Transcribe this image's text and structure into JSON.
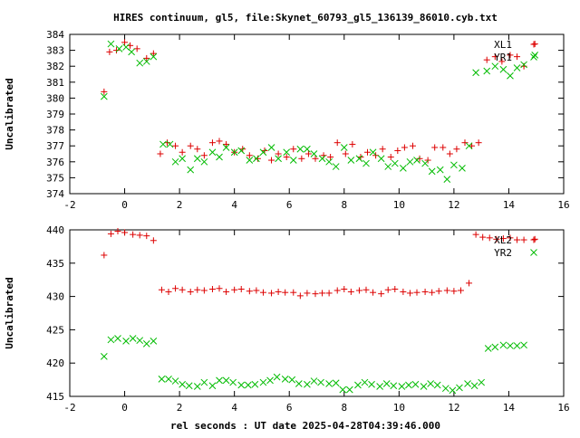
{
  "title": "HIRES continuum, gl5, file:Skynet_60793_gl5_136139_86010.cyb.txt",
  "xlabel": "rel seconds : UT date 2025-04-28T04:39:46.000",
  "colors": {
    "red": "#dd0000",
    "green": "#00bb00",
    "axes": "#000000"
  },
  "chart_data": [
    {
      "type": "scatter",
      "ylabel": "Uncalibrated",
      "xlim": [
        -2,
        16
      ],
      "ylim": [
        374,
        384
      ],
      "xticks": [
        -2,
        0,
        2,
        4,
        6,
        8,
        10,
        12,
        14,
        16
      ],
      "yticks": [
        374,
        375,
        376,
        377,
        378,
        379,
        380,
        381,
        382,
        383,
        384
      ],
      "legend_position": "top-right",
      "series": [
        {
          "name": "XL1",
          "marker": "plus",
          "color": "#dd0000",
          "x": [
            -0.75,
            -0.55,
            -0.3,
            0.0,
            0.2,
            0.45,
            0.8,
            1.05,
            1.3,
            1.55,
            1.85,
            2.1,
            2.4,
            2.65,
            2.9,
            3.2,
            3.45,
            3.7,
            4.0,
            4.3,
            4.55,
            4.85,
            5.1,
            5.35,
            5.6,
            5.9,
            6.15,
            6.45,
            6.7,
            6.95,
            7.25,
            7.5,
            7.75,
            8.05,
            8.3,
            8.6,
            8.85,
            9.15,
            9.4,
            9.7,
            9.95,
            10.2,
            10.5,
            10.75,
            11.05,
            11.3,
            11.6,
            11.85,
            12.1,
            12.4,
            12.65,
            12.9,
            13.2,
            13.5,
            13.75,
            14.05,
            14.3,
            14.55,
            14.95
          ],
          "y": [
            380.4,
            382.9,
            383.0,
            383.5,
            383.3,
            383.1,
            382.5,
            382.8,
            376.5,
            377.2,
            377.0,
            376.6,
            377.0,
            376.8,
            376.4,
            377.2,
            377.3,
            377.1,
            376.6,
            376.8,
            376.4,
            376.2,
            376.7,
            376.1,
            376.5,
            376.3,
            376.8,
            376.2,
            376.5,
            376.2,
            376.4,
            376.3,
            377.2,
            376.5,
            377.1,
            376.3,
            376.6,
            376.4,
            376.8,
            376.3,
            376.7,
            376.9,
            377.0,
            376.2,
            376.1,
            376.9,
            376.9,
            376.5,
            376.8,
            377.2,
            377.0,
            377.2,
            382.4,
            382.6,
            382.3,
            382.7,
            382.6,
            382.0,
            383.4
          ]
        },
        {
          "name": "YR1",
          "marker": "cross",
          "color": "#00bb00",
          "x": [
            -0.75,
            -0.5,
            -0.2,
            0.05,
            0.25,
            0.55,
            0.8,
            1.05,
            1.4,
            1.65,
            1.85,
            2.1,
            2.4,
            2.65,
            2.9,
            3.2,
            3.45,
            3.7,
            4.0,
            4.25,
            4.55,
            4.8,
            5.05,
            5.35,
            5.6,
            5.9,
            6.15,
            6.4,
            6.65,
            6.9,
            7.2,
            7.45,
            7.7,
            8.0,
            8.25,
            8.55,
            8.8,
            9.05,
            9.35,
            9.6,
            9.85,
            10.15,
            10.4,
            10.65,
            10.95,
            11.2,
            11.5,
            11.75,
            12.0,
            12.3,
            12.55,
            12.8,
            13.2,
            13.5,
            13.8,
            14.05,
            14.3,
            14.55,
            14.95
          ],
          "y": [
            380.1,
            383.4,
            383.1,
            383.2,
            382.9,
            382.2,
            382.3,
            382.6,
            377.1,
            377.1,
            376.0,
            376.2,
            375.5,
            376.2,
            376.0,
            376.6,
            376.3,
            376.9,
            376.6,
            376.7,
            376.1,
            376.2,
            376.6,
            376.9,
            376.2,
            376.6,
            376.1,
            376.8,
            376.8,
            376.5,
            376.2,
            376.0,
            375.7,
            376.9,
            376.1,
            376.2,
            375.9,
            376.6,
            376.2,
            375.7,
            375.9,
            375.6,
            376.0,
            376.1,
            375.9,
            375.4,
            375.5,
            374.9,
            375.8,
            375.6,
            377.0,
            381.6,
            381.7,
            382.0,
            381.8,
            381.4,
            381.9,
            382.1,
            382.7
          ]
        }
      ]
    },
    {
      "type": "scatter",
      "ylabel": "Uncalibrated",
      "xlim": [
        -2,
        16
      ],
      "ylim": [
        415,
        440
      ],
      "xticks": [
        -2,
        0,
        2,
        4,
        6,
        8,
        10,
        12,
        14,
        16
      ],
      "yticks": [
        415,
        420,
        425,
        430,
        435,
        440
      ],
      "legend_position": "top-right",
      "series": [
        {
          "name": "XL2",
          "marker": "plus",
          "color": "#dd0000",
          "x": [
            -0.75,
            -0.5,
            -0.25,
            0.0,
            0.3,
            0.55,
            0.8,
            1.05,
            1.35,
            1.6,
            1.85,
            2.1,
            2.4,
            2.65,
            2.9,
            3.2,
            3.45,
            3.7,
            4.0,
            4.25,
            4.55,
            4.8,
            5.05,
            5.35,
            5.6,
            5.85,
            6.15,
            6.4,
            6.65,
            6.95,
            7.2,
            7.45,
            7.75,
            8.0,
            8.25,
            8.55,
            8.8,
            9.05,
            9.35,
            9.6,
            9.85,
            10.15,
            10.4,
            10.65,
            10.95,
            11.2,
            11.45,
            11.75,
            12.0,
            12.25,
            12.55,
            12.8,
            13.05,
            13.3,
            13.55,
            13.8,
            14.05,
            14.3,
            14.55,
            14.95
          ],
          "y": [
            436.2,
            439.4,
            439.8,
            439.6,
            439.3,
            439.2,
            439.1,
            438.4,
            431.0,
            430.7,
            431.2,
            431.0,
            430.7,
            431.0,
            430.9,
            431.1,
            431.2,
            430.7,
            431.0,
            431.1,
            430.8,
            430.9,
            430.6,
            430.5,
            430.7,
            430.6,
            430.6,
            430.1,
            430.5,
            430.4,
            430.5,
            430.5,
            430.9,
            431.1,
            430.7,
            430.9,
            431.0,
            430.6,
            430.4,
            431.0,
            431.1,
            430.7,
            430.5,
            430.6,
            430.7,
            430.6,
            430.8,
            430.9,
            430.8,
            430.9,
            432.0,
            439.3,
            438.9,
            438.8,
            438.6,
            438.7,
            438.8,
            438.5,
            438.5,
            438.6
          ]
        },
        {
          "name": "YR2",
          "marker": "cross",
          "color": "#00bb00",
          "x": [
            -0.75,
            -0.5,
            -0.25,
            0.05,
            0.3,
            0.55,
            0.8,
            1.05,
            1.35,
            1.6,
            1.85,
            2.1,
            2.35,
            2.65,
            2.9,
            3.2,
            3.45,
            3.7,
            3.95,
            4.25,
            4.5,
            4.75,
            5.05,
            5.3,
            5.55,
            5.85,
            6.1,
            6.35,
            6.65,
            6.9,
            7.15,
            7.45,
            7.7,
            7.95,
            8.2,
            8.5,
            8.75,
            9.0,
            9.3,
            9.55,
            9.8,
            10.1,
            10.35,
            10.6,
            10.9,
            11.15,
            11.4,
            11.7,
            11.95,
            12.2,
            12.5,
            12.75,
            13.0,
            13.25,
            13.5,
            13.8,
            14.05,
            14.3,
            14.55
          ],
          "y": [
            421.0,
            423.5,
            423.7,
            423.3,
            423.7,
            423.4,
            422.9,
            423.3,
            417.6,
            417.6,
            417.3,
            416.8,
            416.6,
            416.5,
            417.1,
            416.6,
            417.4,
            417.4,
            417.1,
            416.7,
            416.7,
            416.8,
            417.1,
            417.4,
            417.9,
            417.6,
            417.5,
            416.9,
            416.8,
            417.3,
            417.1,
            416.9,
            417.0,
            416.0,
            416.0,
            416.7,
            417.1,
            416.8,
            416.5,
            416.9,
            416.6,
            416.5,
            416.7,
            416.8,
            416.5,
            416.9,
            416.7,
            416.2,
            415.9,
            416.3,
            416.9,
            416.6,
            417.1,
            422.2,
            422.4,
            422.7,
            422.6,
            422.6,
            422.7
          ]
        }
      ]
    }
  ]
}
